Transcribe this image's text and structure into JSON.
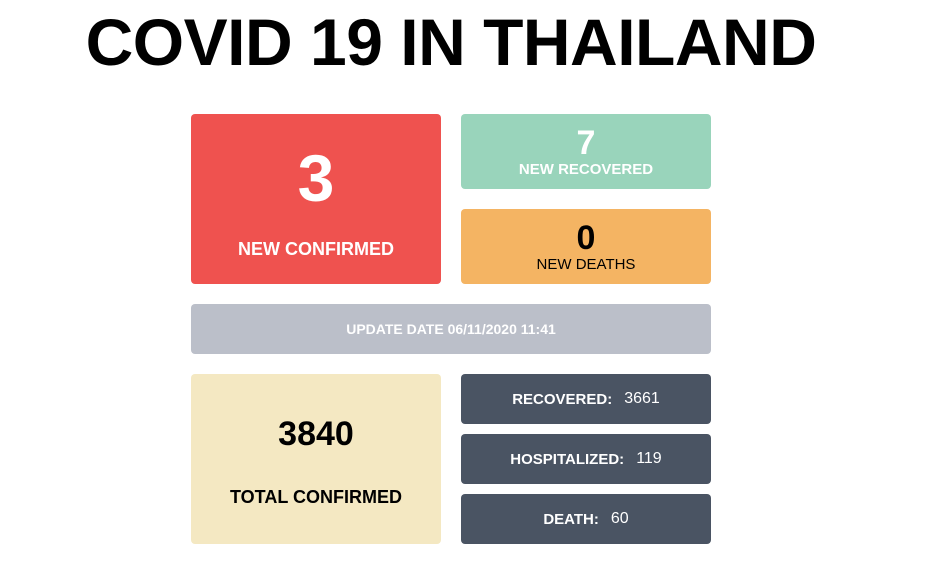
{
  "title": "COVID 19 IN THAILAND",
  "new_confirmed": {
    "value": "3",
    "label": "NEW CONFIRMED"
  },
  "new_recovered": {
    "value": "7",
    "label": "NEW RECOVERED"
  },
  "new_deaths": {
    "value": "0",
    "label": "NEW DEATHS"
  },
  "update": {
    "text": "UPDATE DATE 06/11/2020 11:41"
  },
  "total_confirmed": {
    "value": "3840",
    "label": "TOTAL CONFIRMED"
  },
  "stats": {
    "recovered": {
      "label": "RECOVERED:",
      "value": "3661"
    },
    "hospitalized": {
      "label": "HOSPITALIZED:",
      "value": "119"
    },
    "death": {
      "label": "DEATH:",
      "value": "60"
    }
  },
  "colors": {
    "new_confirmed": "#ef524f",
    "new_recovered": "#99d4bb",
    "new_deaths": "#f4b463",
    "update_bar": "#bbbfc9",
    "total_confirmed": "#f4e8c2",
    "stat_cards": "#4a5463"
  }
}
